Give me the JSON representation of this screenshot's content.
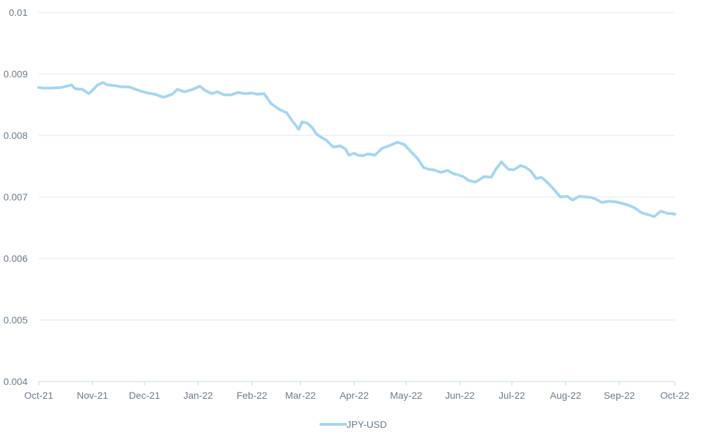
{
  "chart_data": {
    "type": "line",
    "title": "",
    "xlabel": "",
    "ylabel": "",
    "ylim": [
      0.004,
      0.01
    ],
    "y_ticks": [
      "0.004",
      "0.005",
      "0.006",
      "0.007",
      "0.008",
      "0.009",
      "0.01"
    ],
    "x_ticks": [
      "Oct-21",
      "Nov-21",
      "Dec-21",
      "Jan-22",
      "Feb-22",
      "Mar-22",
      "Apr-22",
      "May-22",
      "Jun-22",
      "Jul-22",
      "Aug-22",
      "Sep-22",
      "Oct-22"
    ],
    "grid": "horizontal",
    "legend_position": "bottom-center",
    "colors": {
      "line": "#a8d5ee",
      "grid": "#dbe7f0",
      "axis": "#c9d6e0",
      "text": "#6b7a8a"
    },
    "series": [
      {
        "name": "JPY-USD",
        "x": [
          "2021-10-01",
          "2021-10-04",
          "2021-10-08",
          "2021-10-14",
          "2021-10-20",
          "2021-10-22",
          "2021-10-26",
          "2021-10-30",
          "2021-11-04",
          "2021-11-07",
          "2021-11-10",
          "2021-11-14",
          "2021-11-18",
          "2021-11-22",
          "2021-11-25",
          "2021-11-29",
          "2021-12-03",
          "2021-12-07",
          "2021-12-12",
          "2021-12-17",
          "2021-12-20",
          "2021-12-24",
          "2021-12-28",
          "2022-01-02",
          "2022-01-05",
          "2022-01-09",
          "2022-01-12",
          "2022-01-16",
          "2022-01-20",
          "2022-01-24",
          "2022-01-28",
          "2022-02-01",
          "2022-02-04",
          "2022-02-08",
          "2022-02-12",
          "2022-02-17",
          "2022-02-21",
          "2022-02-24",
          "2022-02-28",
          "2022-03-02",
          "2022-03-05",
          "2022-03-08",
          "2022-03-10",
          "2022-03-13",
          "2022-03-16",
          "2022-03-20",
          "2022-03-24",
          "2022-03-27",
          "2022-03-29",
          "2022-04-01",
          "2022-04-03",
          "2022-04-06",
          "2022-04-09",
          "2022-04-13",
          "2022-04-17",
          "2022-04-21",
          "2022-04-26",
          "2022-04-30",
          "2022-05-04",
          "2022-05-08",
          "2022-05-11",
          "2022-05-14",
          "2022-05-17",
          "2022-05-21",
          "2022-05-25",
          "2022-05-28",
          "2022-05-31",
          "2022-06-03",
          "2022-06-06",
          "2022-06-10",
          "2022-06-15",
          "2022-06-19",
          "2022-06-22",
          "2022-06-25",
          "2022-06-29",
          "2022-07-02",
          "2022-07-06",
          "2022-07-09",
          "2022-07-12",
          "2022-07-15",
          "2022-07-18",
          "2022-07-21",
          "2022-07-25",
          "2022-07-29",
          "2022-08-02",
          "2022-08-05",
          "2022-08-09",
          "2022-08-13",
          "2022-08-16",
          "2022-08-18",
          "2022-08-22",
          "2022-08-26",
          "2022-08-30",
          "2022-09-02",
          "2022-09-06",
          "2022-09-10",
          "2022-09-14",
          "2022-09-18",
          "2022-09-21",
          "2022-09-25",
          "2022-09-29",
          "2022-10-01",
          "2022-10-03"
        ],
        "values": [
          0.00878,
          0.00877,
          0.00877,
          0.00878,
          0.00882,
          0.00876,
          0.00875,
          0.00868,
          0.00882,
          0.00886,
          0.00882,
          0.00881,
          0.00879,
          0.00879,
          0.00876,
          0.00872,
          0.00869,
          0.00867,
          0.00862,
          0.00867,
          0.00875,
          0.00871,
          0.00874,
          0.0088,
          0.00873,
          0.00868,
          0.00871,
          0.00866,
          0.00866,
          0.0087,
          0.00868,
          0.00869,
          0.00867,
          0.00868,
          0.00852,
          0.00842,
          0.00837,
          0.00825,
          0.0081,
          0.00822,
          0.0082,
          0.00812,
          0.00803,
          0.00797,
          0.00792,
          0.00781,
          0.00783,
          0.00778,
          0.00768,
          0.00771,
          0.00768,
          0.00767,
          0.0077,
          0.00768,
          0.00779,
          0.00783,
          0.00789,
          0.00785,
          0.00773,
          0.00761,
          0.00748,
          0.00745,
          0.00744,
          0.0074,
          0.00743,
          0.00738,
          0.00736,
          0.00733,
          0.00727,
          0.00724,
          0.00733,
          0.00732,
          0.00746,
          0.00757,
          0.00745,
          0.00744,
          0.00751,
          0.00748,
          0.00742,
          0.0073,
          0.00732,
          0.00725,
          0.00713,
          0.007,
          0.00701,
          0.00695,
          0.00701,
          0.007,
          0.00699,
          0.00697,
          0.00691,
          0.00693,
          0.00692,
          0.0069,
          0.00687,
          0.00682,
          0.00674,
          0.00671,
          0.00668,
          0.00677,
          0.00673,
          0.00673,
          0.00672
        ]
      }
    ]
  }
}
